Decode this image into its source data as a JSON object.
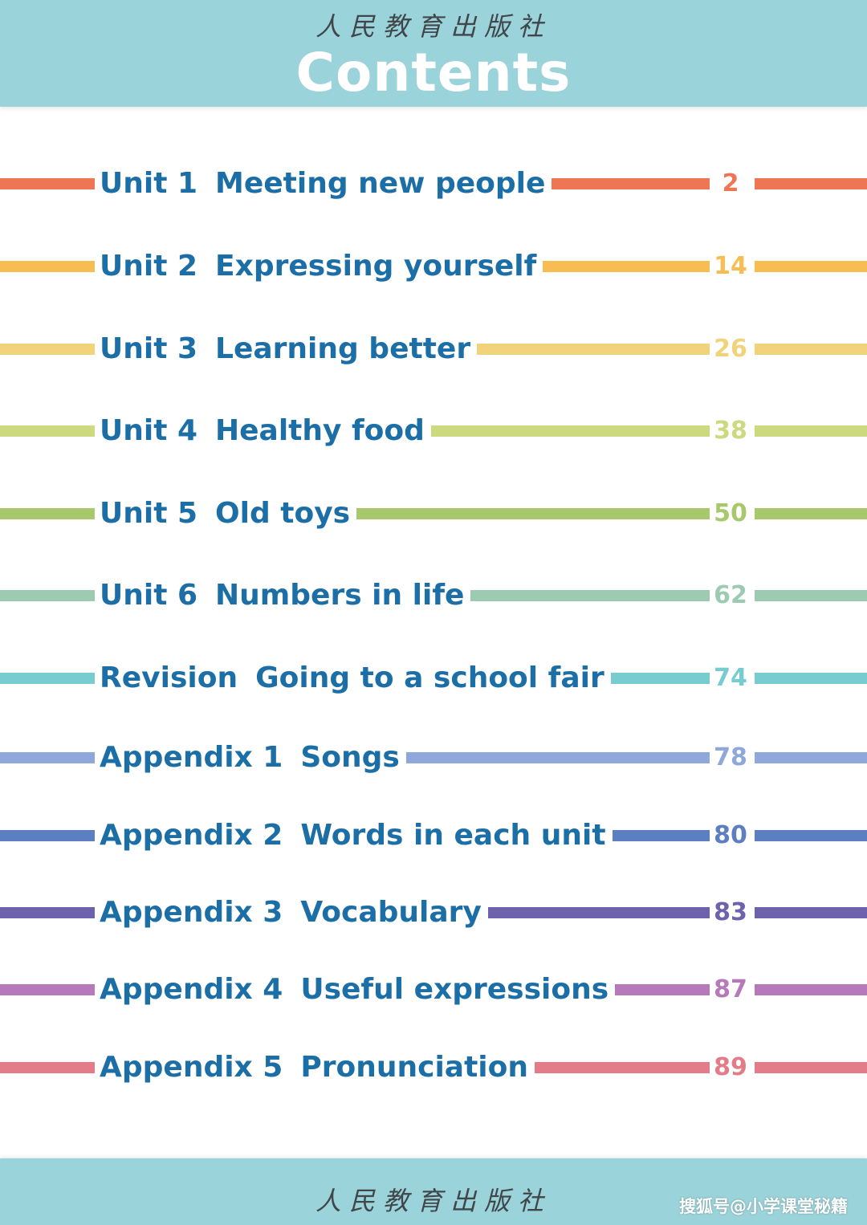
{
  "header": {
    "publisher": "人民教育出版社",
    "title": "Contents"
  },
  "footer": {
    "publisher": "人民教育出版社",
    "watermark": "搜狐号@小学课堂秘籍"
  },
  "colors": {
    "header_bg": "#9bd3da",
    "title_text": "#ffffff",
    "entry_text": "#1c6fa6"
  },
  "entries": [
    {
      "number": "Unit 1",
      "title": "Meeting new people",
      "page": "2",
      "color": "#ef7655"
    },
    {
      "number": "Unit 2",
      "title": "Expressing yourself",
      "page": "14",
      "color": "#f8bd52"
    },
    {
      "number": "Unit 3",
      "title": "Learning better",
      "page": "26",
      "color": "#f0d37a"
    },
    {
      "number": "Unit 4",
      "title": "Healthy food",
      "page": "38",
      "color": "#cdd97f"
    },
    {
      "number": "Unit 5",
      "title": "Old toys",
      "page": "50",
      "color": "#a7c86b"
    },
    {
      "number": "Unit 6",
      "title": "Numbers in life",
      "page": "62",
      "color": "#9dcbb2"
    },
    {
      "number": "Revision",
      "title": "Going to a school fair",
      "page": "74",
      "color": "#76cccf"
    },
    {
      "number": "Appendix 1",
      "title": "Songs",
      "page": "78",
      "color": "#8ea8d9"
    },
    {
      "number": "Appendix 2",
      "title": "Words in each unit",
      "page": "80",
      "color": "#5b7fc1"
    },
    {
      "number": "Appendix 3",
      "title": "Vocabulary",
      "page": "83",
      "color": "#6e62ad"
    },
    {
      "number": "Appendix 4",
      "title": "Useful expressions",
      "page": "87",
      "color": "#b77ab8"
    },
    {
      "number": "Appendix 5",
      "title": "Pronunciation",
      "page": "89",
      "color": "#e47b89"
    }
  ]
}
